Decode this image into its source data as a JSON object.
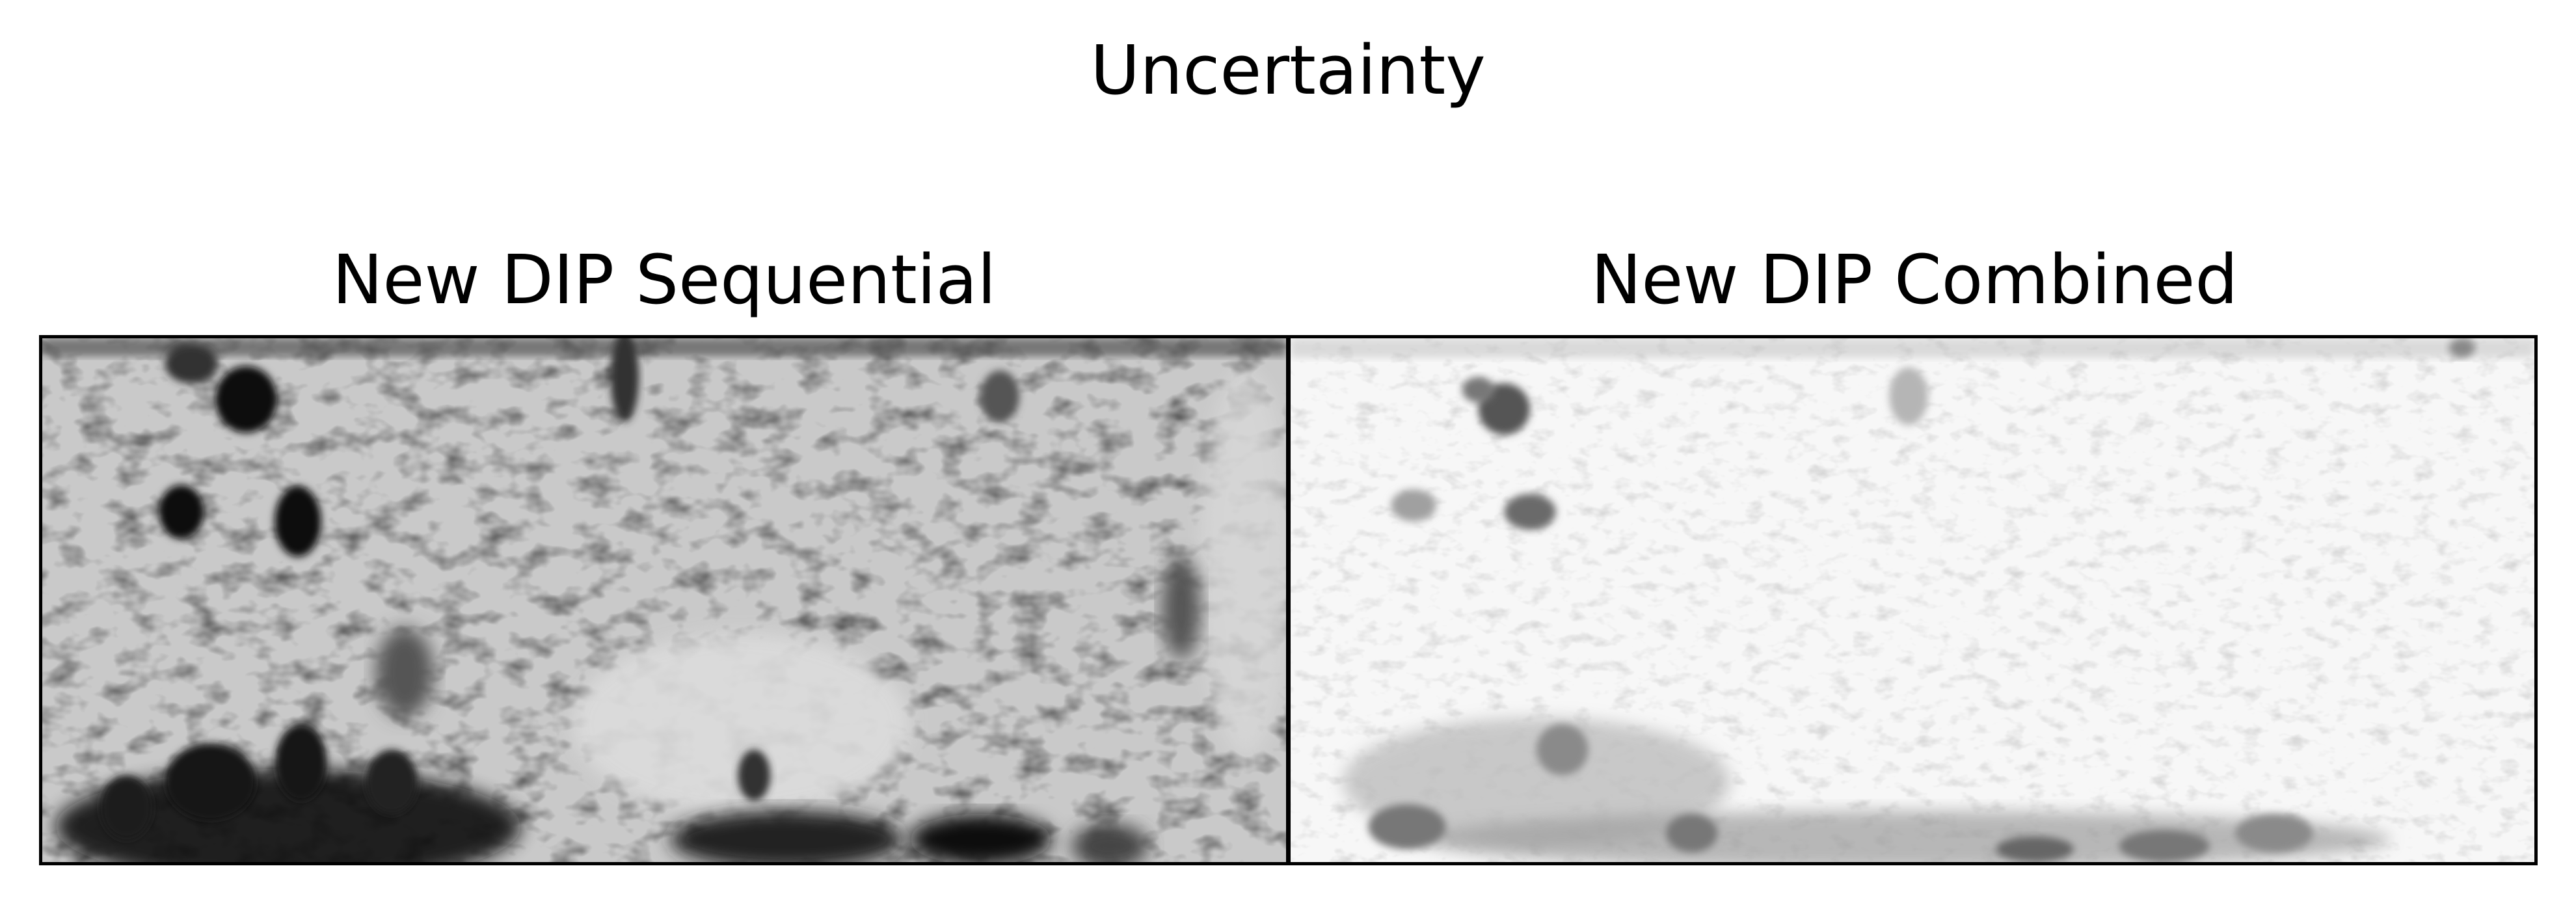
{
  "figure": {
    "title": "Uncertainty"
  },
  "panels": [
    {
      "title": "New DIP Sequential"
    },
    {
      "title": "New DIP Combined"
    }
  ],
  "colormap": "gray_r"
}
